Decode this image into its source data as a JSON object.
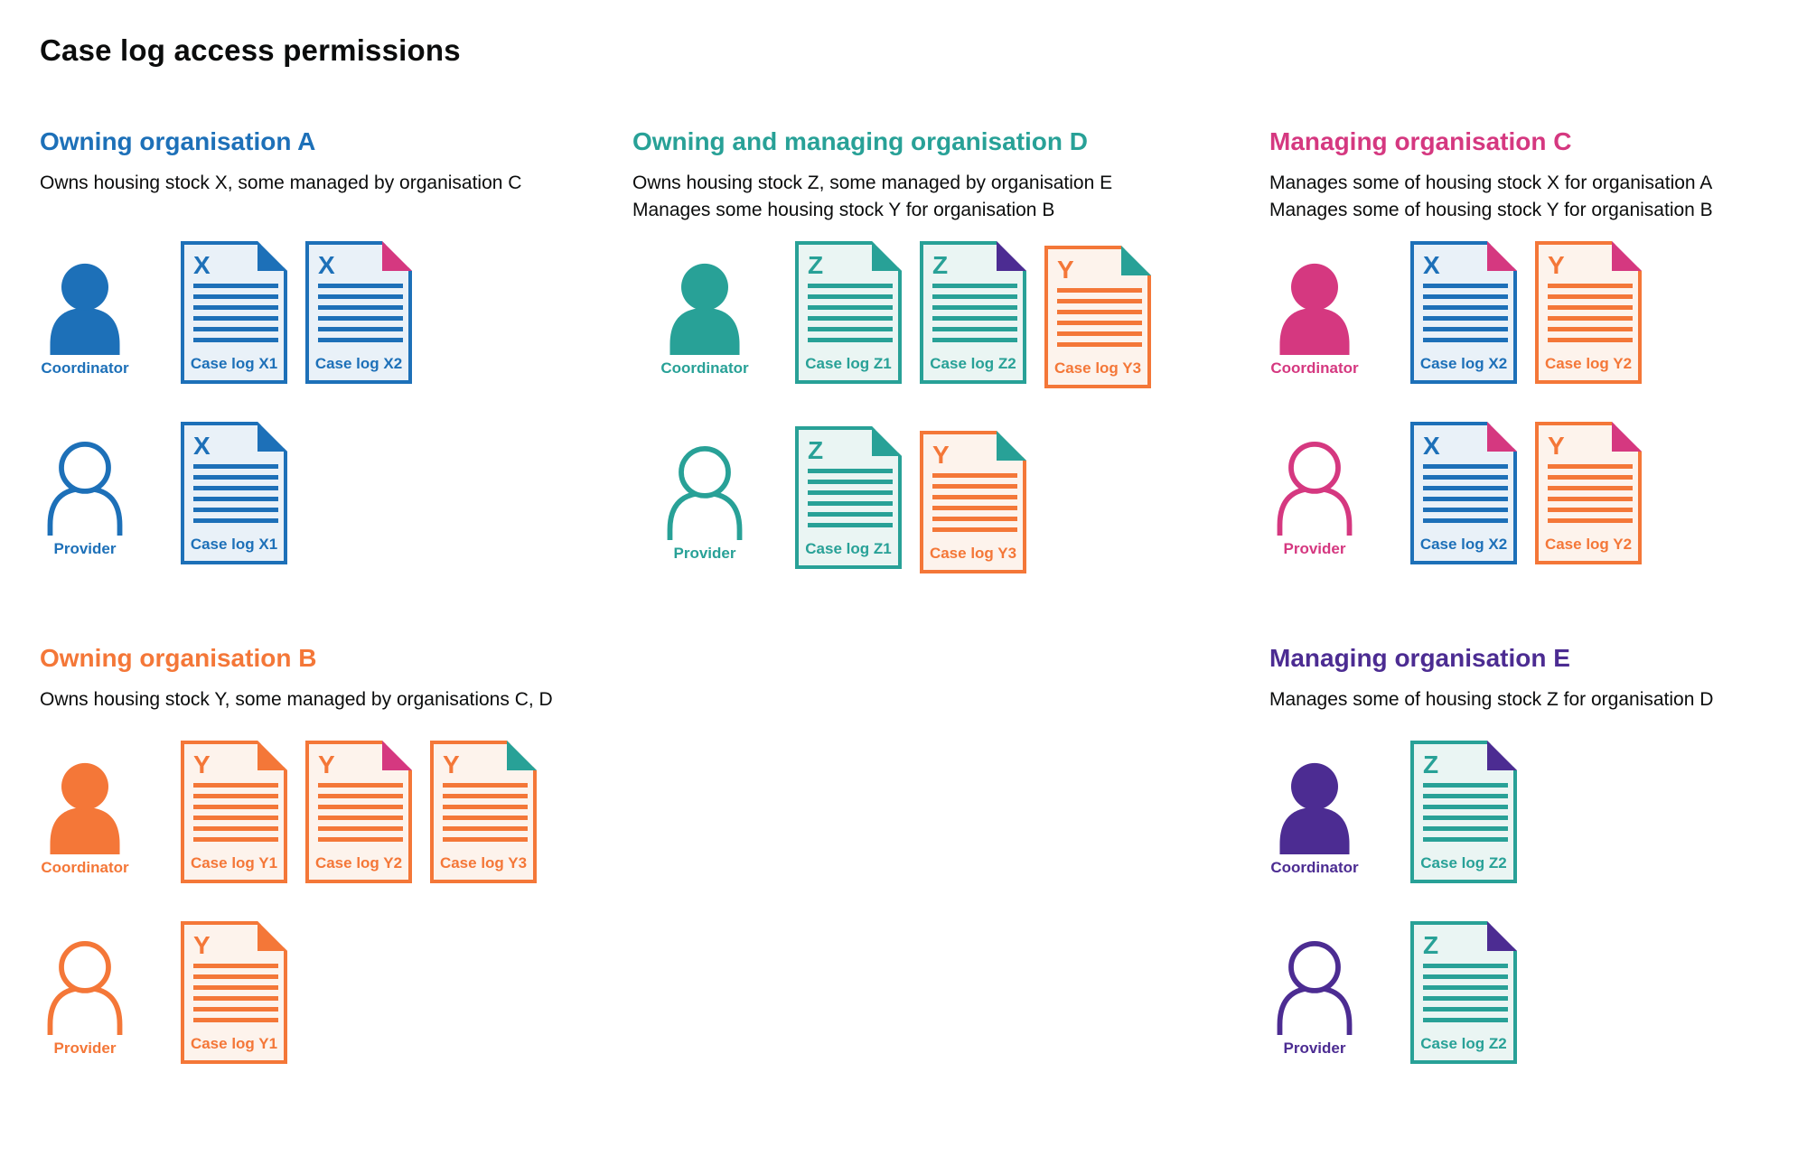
{
  "title": "Case log access permissions",
  "colors": {
    "blue": "#1d70b8",
    "teal": "#28a197",
    "pink": "#d53880",
    "orange": "#f47738",
    "purple": "#4c2c92",
    "text": "#0b0c0c"
  },
  "tints": {
    "blue": "#e9f1f8",
    "teal": "#eaf5f3",
    "orange": "#fdf3ec"
  },
  "sections": [
    {
      "id": "org-a",
      "heading": "Owning organisation A",
      "color": "blue",
      "description": [
        "Owns housing stock X, some managed by organisation C"
      ],
      "rows": [
        {
          "role": "Coordinator",
          "person_style": "filled",
          "docs": [
            {
              "letter": "X",
              "label": "Case log X1",
              "color": "blue",
              "fold": "blue"
            },
            {
              "letter": "X",
              "label": "Case log X2",
              "color": "blue",
              "fold": "pink"
            }
          ]
        },
        {
          "role": "Provider",
          "person_style": "outline",
          "docs": [
            {
              "letter": "X",
              "label": "Case log X1",
              "color": "blue",
              "fold": "blue"
            }
          ]
        }
      ]
    },
    {
      "id": "org-d",
      "heading": "Owning and managing organisation D",
      "color": "teal",
      "description": [
        "Owns housing stock Z, some managed by organisation E",
        "Manages some housing stock Y for organisation B"
      ],
      "rows": [
        {
          "role": "Coordinator",
          "person_style": "filled",
          "docs": [
            {
              "letter": "Z",
              "label": "Case log Z1",
              "color": "teal",
              "fold": "teal"
            },
            {
              "letter": "Z",
              "label": "Case log Z2",
              "color": "teal",
              "fold": "purple"
            },
            {
              "letter": "Y",
              "label": "Case log Y3",
              "color": "orange",
              "fold": "teal",
              "offset_down": true
            }
          ]
        },
        {
          "role": "Provider",
          "person_style": "outline",
          "docs": [
            {
              "letter": "Z",
              "label": "Case log Z1",
              "color": "teal",
              "fold": "teal"
            },
            {
              "letter": "Y",
              "label": "Case log Y3",
              "color": "orange",
              "fold": "teal",
              "offset_down": true
            }
          ]
        }
      ]
    },
    {
      "id": "org-c",
      "heading": "Managing organisation C",
      "color": "pink",
      "description": [
        "Manages some of housing stock X for organisation A",
        "Manages some of housing stock Y for organisation B"
      ],
      "rows": [
        {
          "role": "Coordinator",
          "person_style": "filled",
          "docs": [
            {
              "letter": "X",
              "label": "Case log X2",
              "color": "blue",
              "fold": "pink"
            },
            {
              "letter": "Y",
              "label": "Case log Y2",
              "color": "orange",
              "fold": "pink"
            }
          ]
        },
        {
          "role": "Provider",
          "person_style": "outline",
          "docs": [
            {
              "letter": "X",
              "label": "Case log X2",
              "color": "blue",
              "fold": "pink"
            },
            {
              "letter": "Y",
              "label": "Case log Y2",
              "color": "orange",
              "fold": "pink"
            }
          ]
        }
      ]
    },
    {
      "id": "org-b",
      "heading": "Owning organisation B",
      "color": "orange",
      "description": [
        "Owns housing stock Y, some managed by organisations C, D"
      ],
      "rows": [
        {
          "role": "Coordinator",
          "person_style": "filled",
          "docs": [
            {
              "letter": "Y",
              "label": "Case log Y1",
              "color": "orange",
              "fold": "orange"
            },
            {
              "letter": "Y",
              "label": "Case log Y2",
              "color": "orange",
              "fold": "pink"
            },
            {
              "letter": "Y",
              "label": "Case log Y3",
              "color": "orange",
              "fold": "teal"
            }
          ]
        },
        {
          "role": "Provider",
          "person_style": "outline",
          "docs": [
            {
              "letter": "Y",
              "label": "Case log Y1",
              "color": "orange",
              "fold": "orange"
            }
          ]
        }
      ]
    },
    {
      "id": "org-e",
      "heading": "Managing organisation E",
      "color": "purple",
      "description": [
        "Manages some of housing stock Z for organisation D"
      ],
      "rows": [
        {
          "role": "Coordinator",
          "person_style": "filled",
          "docs": [
            {
              "letter": "Z",
              "label": "Case log Z2",
              "color": "teal",
              "fold": "purple"
            }
          ]
        },
        {
          "role": "Provider",
          "person_style": "outline",
          "docs": [
            {
              "letter": "Z",
              "label": "Case log Z2",
              "color": "teal",
              "fold": "purple"
            }
          ]
        }
      ]
    }
  ]
}
